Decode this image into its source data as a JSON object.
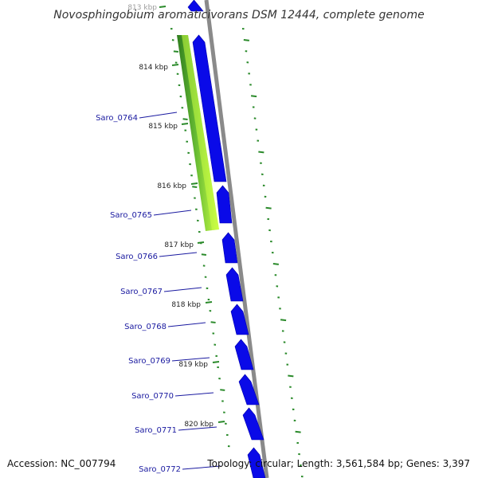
{
  "title": "Novosphingobium aromaticivorans DSM 12444, complete genome",
  "accession_label": "Accession: NC_007794",
  "topology_label": "Topology: circular; Length: 3,561,584 bp; Genes: 3,397",
  "colors": {
    "backbone": "#8a8a8a",
    "cds": "#0a0ae8",
    "cds_label": "#1a1aa0",
    "gc_skew": "#2a8a2a",
    "gc_content_dark": "#2f7d1e",
    "gc_content_light": "#ccff44"
  },
  "kbp_ticks": [
    "813 kbp",
    "814 kbp",
    "815 kbp",
    "816 kbp",
    "817 kbp",
    "818 kbp",
    "819 kbp",
    "820 kbp"
  ],
  "genes": [
    "Saro_0764",
    "Saro_0765",
    "Saro_0766",
    "Saro_0767",
    "Saro_0768",
    "Saro_0769",
    "Saro_0770",
    "Saro_0771",
    "Saro_0772"
  ]
}
